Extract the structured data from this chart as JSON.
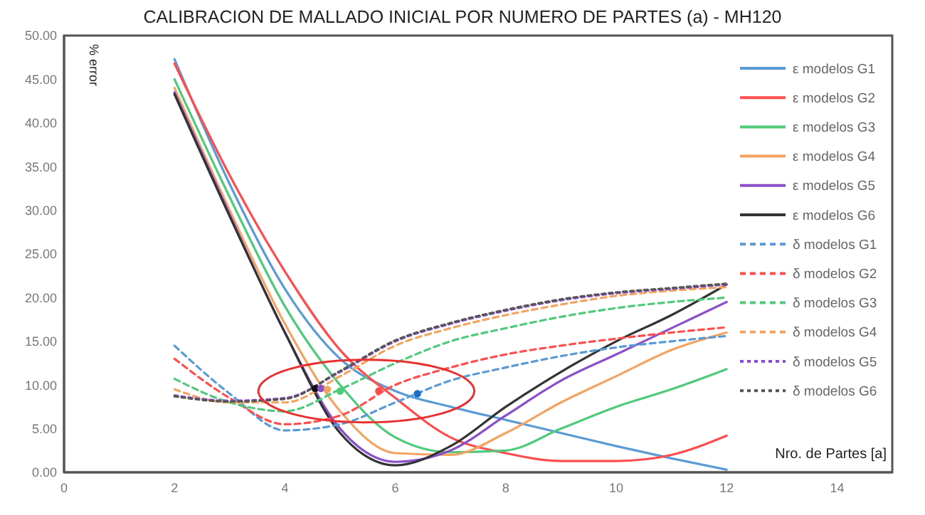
{
  "chart_data": {
    "type": "line",
    "title": "CALIBRACION DE MALLADO INICIAL POR NUMERO DE PARTES (a) - MH120",
    "xlabel": "Nro. de Partes [a]",
    "ylabel": "% error",
    "x": [
      2,
      3,
      4,
      5,
      6,
      7,
      8,
      9,
      10,
      11,
      12
    ],
    "xlim": [
      0,
      15
    ],
    "xticks": [
      0,
      2,
      4,
      6,
      8,
      10,
      12,
      14
    ],
    "ylim": [
      0,
      50
    ],
    "yticks": [
      {
        "value": 0,
        "label": "0.00"
      },
      {
        "value": 5,
        "label": "5.00"
      },
      {
        "value": 10,
        "label": "10.00"
      },
      {
        "value": 15,
        "label": "15.00"
      },
      {
        "value": 20,
        "label": "20.00"
      },
      {
        "value": 25,
        "label": "25.00"
      },
      {
        "value": 30,
        "label": "30.00"
      },
      {
        "value": 35,
        "label": "35.00"
      },
      {
        "value": 40,
        "label": "40.00"
      },
      {
        "value": 45,
        "label": "45.00"
      },
      {
        "value": 50,
        "label": "50.00"
      }
    ],
    "grid": false,
    "legend": "right",
    "marker": "none",
    "series": [
      {
        "name": "ε modelos G1",
        "color": "#5b9bd5",
        "line_style": "solid",
        "values": [
          47.3,
          33,
          21,
          13,
          9.3,
          7.5,
          6,
          4.5,
          3,
          1.6,
          0.3
        ]
      },
      {
        "name": "ε modelos G2",
        "color": "#ff4d4d",
        "line_style": "solid",
        "values": [
          46.8,
          34,
          23,
          14,
          8.5,
          4,
          2.2,
          1.3,
          1.3,
          2,
          4.2
        ]
      },
      {
        "name": "ε modelos G3",
        "color": "#4fc97a",
        "line_style": "solid",
        "values": [
          45,
          31.5,
          19,
          10,
          4,
          2.3,
          2.5,
          5,
          7.5,
          9.5,
          11.8
        ]
      },
      {
        "name": "ε modelos G4",
        "color": "#f4a460",
        "line_style": "solid",
        "values": [
          44,
          30,
          17,
          7,
          2.2,
          2,
          4.5,
          8,
          11,
          14,
          16
        ]
      },
      {
        "name": "ε modelos G5",
        "color": "#8a4fc9",
        "line_style": "solid",
        "values": [
          43.5,
          29.5,
          16,
          5,
          1.2,
          2.5,
          6.5,
          10.5,
          13.5,
          16.5,
          19.5
        ]
      },
      {
        "name": "ε modelos G6",
        "color": "#333333",
        "line_style": "solid",
        "values": [
          43.3,
          29.3,
          16,
          4.5,
          0.8,
          3,
          7.5,
          11.5,
          15,
          18,
          21.5
        ]
      },
      {
        "name": "δ modelos G1",
        "color": "#5b9bd5",
        "line_style": "dashed",
        "values": [
          14.5,
          9,
          4.8,
          5.5,
          8,
          10.5,
          12,
          13.3,
          14.3,
          15,
          15.6
        ]
      },
      {
        "name": "δ modelos G2",
        "color": "#ff4d4d",
        "line_style": "dashed",
        "values": [
          13,
          8.5,
          5.5,
          6.5,
          10,
          12,
          13.5,
          14.5,
          15.3,
          16,
          16.6
        ]
      },
      {
        "name": "δ modelos G3",
        "color": "#4fc97a",
        "line_style": "dashed",
        "values": [
          10.7,
          8,
          7,
          9.5,
          12.5,
          15,
          16.5,
          17.8,
          18.8,
          19.5,
          20
        ]
      },
      {
        "name": "δ modelos G4",
        "color": "#f4a460",
        "line_style": "dashed",
        "values": [
          9.5,
          8,
          8,
          11,
          14.5,
          16.5,
          18,
          19.2,
          20.2,
          20.8,
          21.2
        ]
      },
      {
        "name": "δ modelos G5",
        "color": "#8a4fc9",
        "line_style": "dotted",
        "values": [
          8.8,
          8.2,
          8.5,
          11.5,
          15,
          17,
          18.5,
          19.7,
          20.5,
          21,
          21.5
        ]
      },
      {
        "name": "δ modelos G6",
        "color": "#555555",
        "line_style": "dotted",
        "values": [
          8.7,
          8.1,
          8.4,
          11.6,
          15.1,
          17.1,
          18.6,
          19.8,
          20.6,
          21.1,
          21.6
        ]
      },
      {
        "type": "scatter",
        "x": [
          4.55,
          4.65,
          4.77,
          5.0,
          5.7,
          6.4
        ],
        "values": [
          9.6,
          9.6,
          9.5,
          9.3,
          9.3,
          9.0
        ],
        "colors": [
          "#111111",
          "#8a4fc9",
          "#f4a460",
          "#4fc97a",
          "#ff4d4d",
          "#1f6fc0"
        ],
        "marker": "circle"
      }
    ]
  }
}
